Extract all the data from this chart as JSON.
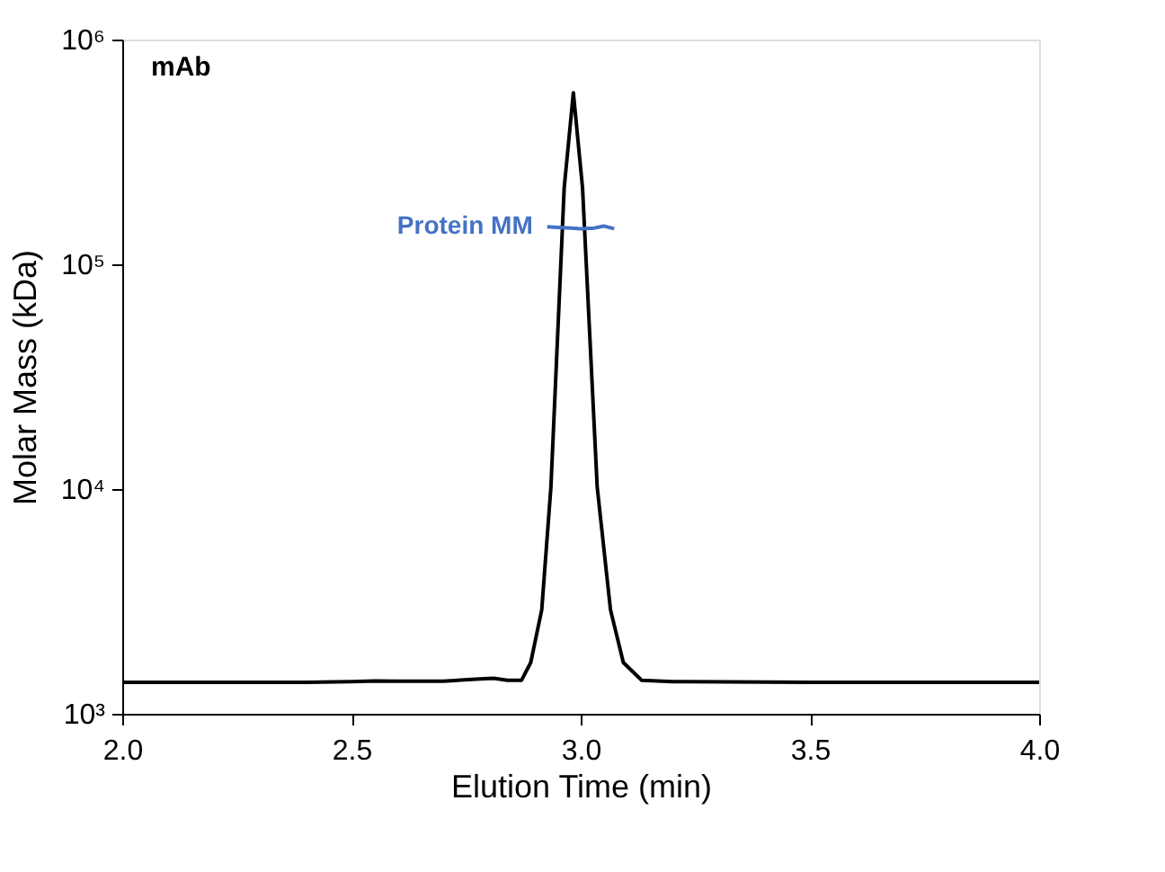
{
  "chart_data": {
    "type": "line",
    "xlabel": "Elution Time (min)",
    "ylabel": "Molar Mass (kDa)",
    "log": "y",
    "xlim": [
      2,
      4
    ],
    "ylim": [
      1000,
      1000000
    ],
    "xticks": [
      {
        "value": 2,
        "label": "2.0"
      },
      {
        "value": 2.5,
        "label": "2.5"
      },
      {
        "value": 3,
        "label": "3.0"
      },
      {
        "value": 3.5,
        "label": "3.5"
      },
      {
        "value": 4,
        "label": "4.0"
      }
    ],
    "yticks": [
      {
        "value": 1000,
        "label": "10³"
      },
      {
        "value": 10000,
        "label": "10⁴"
      },
      {
        "value": 100000,
        "label": "10⁵"
      },
      {
        "value": 1000000,
        "label": "10⁶"
      }
    ],
    "grid": false,
    "annotations": [
      "mAb"
    ],
    "series": [
      {
        "color": "#000000",
        "x": [
          2.0,
          2.4,
          2.5,
          2.55,
          2.6,
          2.7,
          2.78,
          2.81,
          2.84,
          2.871,
          2.891,
          2.915,
          2.935,
          2.964,
          2.984,
          3.004,
          3.036,
          3.065,
          3.093,
          3.133,
          3.2,
          3.5,
          4.0
        ],
        "values": [
          1380,
          1380,
          1390,
          1400,
          1395,
          1395,
          1430,
          1440,
          1410,
          1410,
          1690,
          2900,
          10200,
          219000,
          580000,
          219000,
          10200,
          2900,
          1690,
          1410,
          1390,
          1380,
          1380
        ]
      },
      {
        "name": "Protein MM",
        "color": "#4472c4",
        "x": [
          2.927,
          2.95,
          2.98,
          3.0,
          3.03,
          3.05,
          3.073
        ],
        "values": [
          147000,
          146000,
          145000,
          144000,
          145000,
          148000,
          144000
        ]
      }
    ]
  }
}
